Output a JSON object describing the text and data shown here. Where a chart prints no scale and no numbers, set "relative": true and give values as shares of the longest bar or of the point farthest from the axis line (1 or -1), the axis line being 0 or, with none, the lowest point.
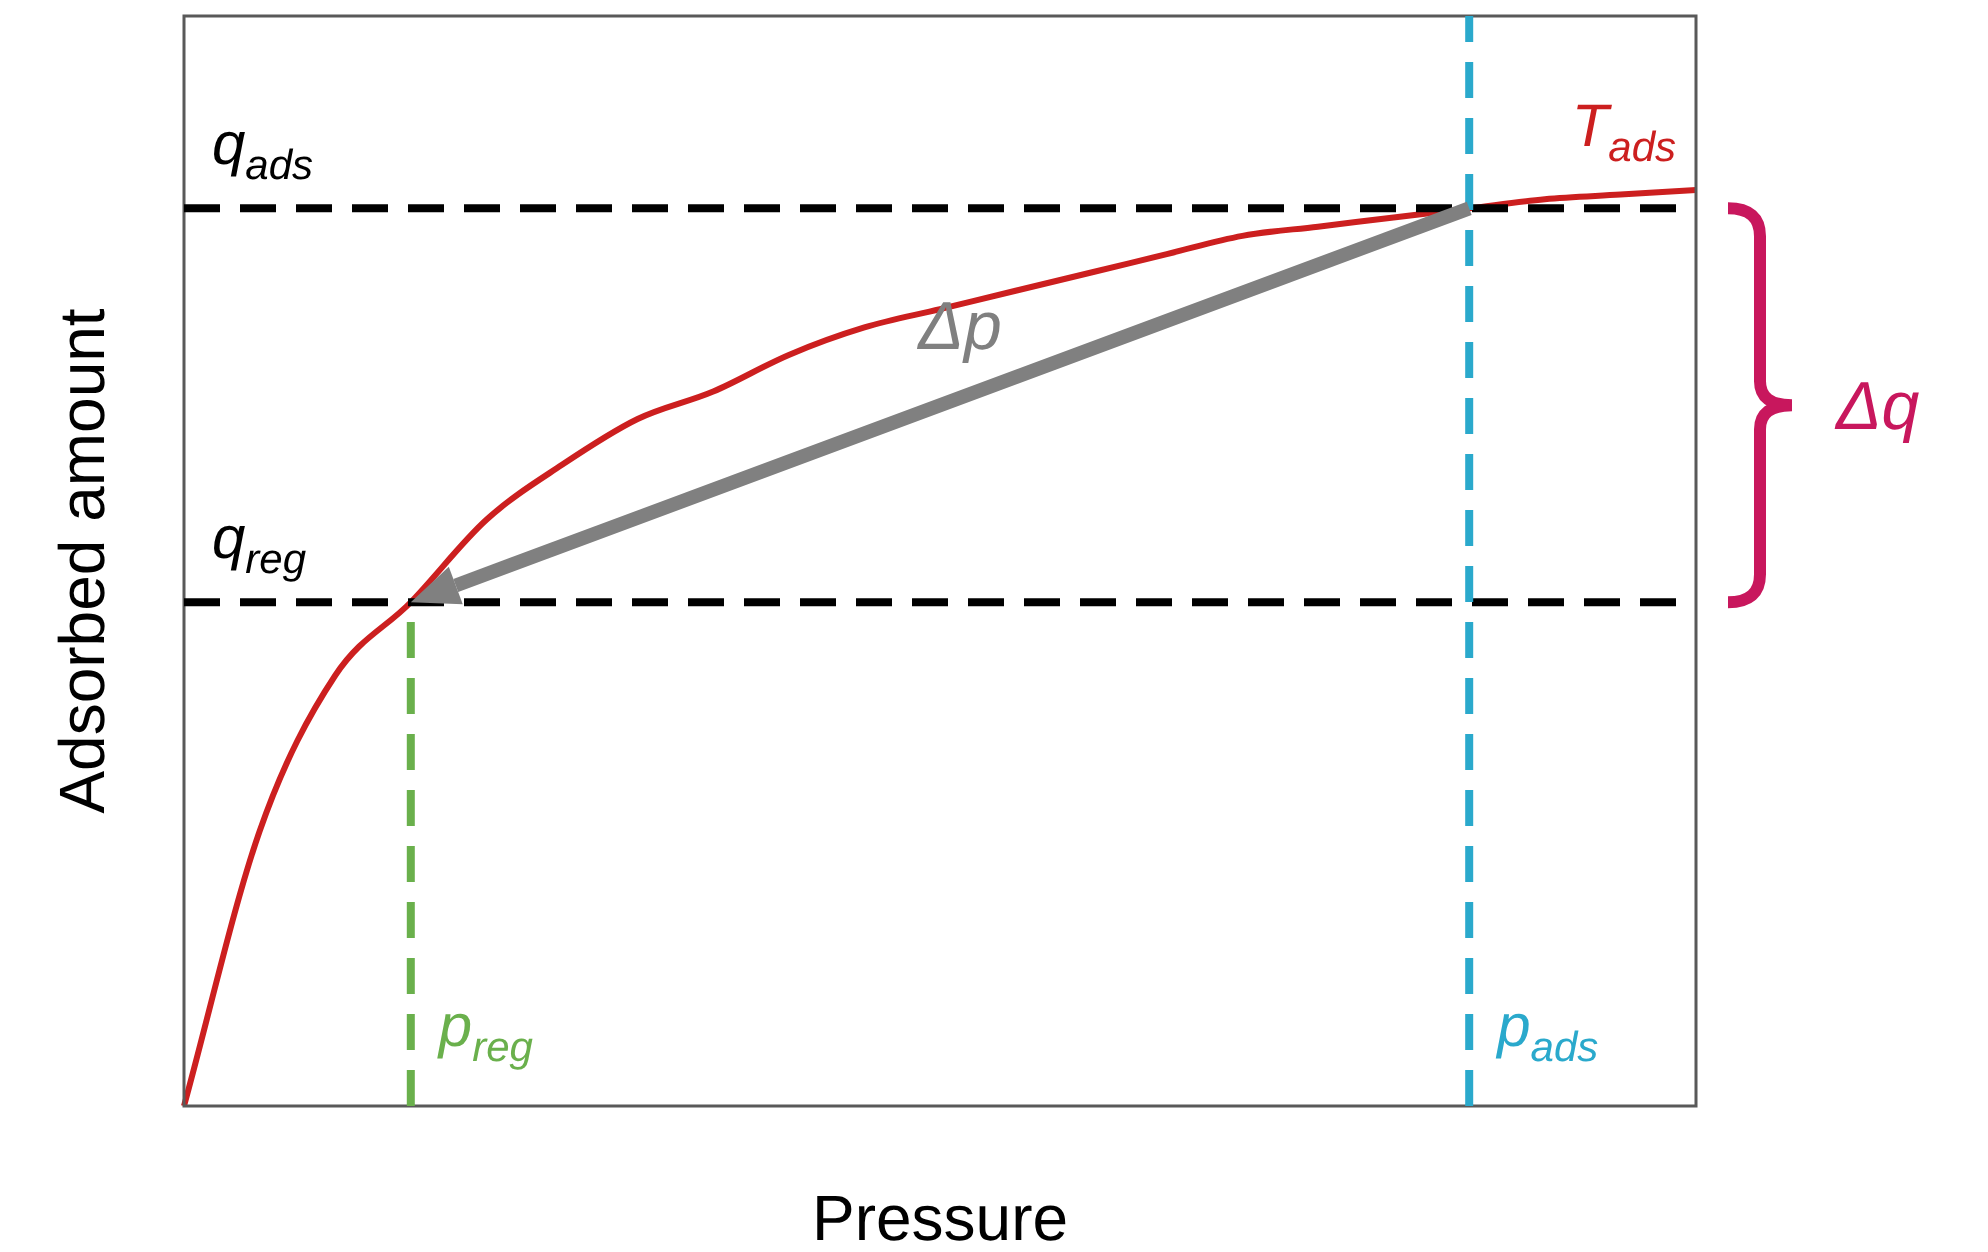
{
  "chart_data": {
    "type": "line",
    "xlabel": "Pressure",
    "ylabel": "Adsorbed amount",
    "relative": true,
    "legend": false,
    "marker": "none",
    "categories": [
      null,
      null,
      null,
      null,
      null,
      null,
      null,
      null,
      null,
      null,
      null,
      null,
      null,
      null,
      null,
      null,
      null,
      null,
      null,
      null,
      null
    ],
    "series": [
      {
        "name": "T$_{ads}$",
        "color": "#cc1f1f",
        "values": [
          0,
          0.3,
          0.47,
          0.55,
          0.64,
          0.7,
          0.75,
          0.78,
          0.82,
          0.85,
          0.87,
          0.89,
          0.91,
          0.93,
          0.95,
          0.96,
          0.97,
          0.98,
          0.99,
          0.995,
          1
        ]
      }
    ],
    "ref_lines": [
      {
        "axis": "y",
        "value": 0.98,
        "label": "q$_{ads}$",
        "color": "#000000",
        "line_style": "dashed"
      },
      {
        "axis": "y",
        "value": 0.55,
        "label": "q$_{reg}$",
        "color": "#000000",
        "line_style": "dashed"
      }
    ],
    "annotations": [
      "Δp",
      "Δq",
      "p$_{reg}$",
      "p$_{ads}$"
    ]
  }
}
